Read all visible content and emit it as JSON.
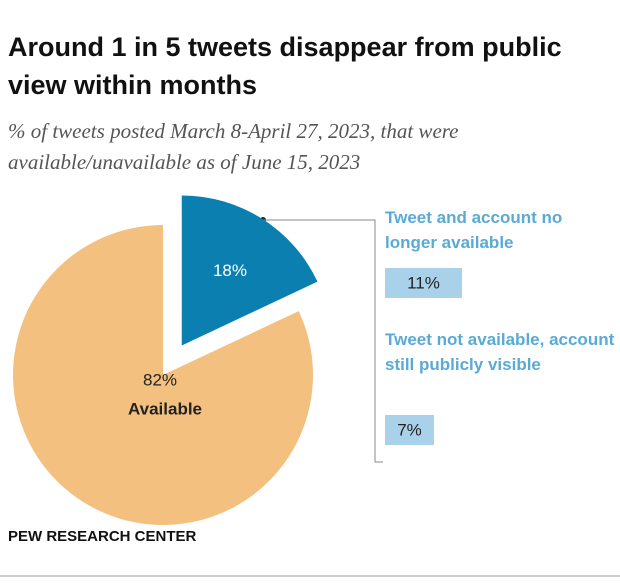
{
  "chart_data": {
    "type": "pie",
    "title": "Around 1 in 5 tweets disappear from public view within months",
    "subtitle": "% of tweets posted March 8-April 27, 2023, that were available/unavailable as of June 15, 2023",
    "categories": [
      null,
      "Available"
    ],
    "values": [
      18,
      82
    ],
    "value_labels": [
      "18%",
      "82%"
    ],
    "colors": [
      "#0b7fb0",
      "#f3c07f"
    ],
    "breakdown": {
      "categories": [
        "Tweet and account no longer available",
        "Tweet not available, account still publicly visible"
      ],
      "values": [
        11,
        7
      ],
      "value_labels": [
        "11%",
        "7%"
      ],
      "color": "#a9d2ea",
      "text_color": "#5aaad6"
    },
    "source": "PEW RESEARCH CENTER"
  }
}
